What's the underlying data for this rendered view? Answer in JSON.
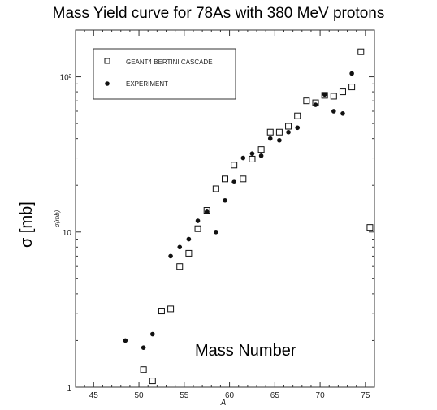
{
  "title": "Mass Yield curve for 78As with 380 MeV protons",
  "ylabel_outer": "σ [mb]",
  "mass_number_label": "Mass Number",
  "chart_data": {
    "type": "scatter",
    "title": "Mass Yield curve for 78As with 380 MeV protons",
    "xlabel": "A",
    "ylabel": "σ(mb)",
    "xlim": [
      43,
      76
    ],
    "ylim": [
      1,
      200
    ],
    "y_scale": "log",
    "x_ticks": [
      45,
      50,
      55,
      60,
      65,
      70,
      75
    ],
    "y_ticks": [
      {
        "value": 1,
        "label": "1"
      },
      {
        "value": 10,
        "label": "10"
      },
      {
        "value": 100,
        "label": "10²"
      }
    ],
    "legend_position": "top-left",
    "series": [
      {
        "name": "GEANT4 BERTINI CASCADE",
        "marker": "open-square",
        "points": [
          {
            "x": 50.5,
            "y": 1.3
          },
          {
            "x": 51.5,
            "y": 1.1
          },
          {
            "x": 52.5,
            "y": 3.1
          },
          {
            "x": 53.5,
            "y": 3.2
          },
          {
            "x": 54.5,
            "y": 6.0
          },
          {
            "x": 55.5,
            "y": 7.3
          },
          {
            "x": 56.5,
            "y": 10.5
          },
          {
            "x": 57.5,
            "y": 13.8
          },
          {
            "x": 58.5,
            "y": 19.0
          },
          {
            "x": 59.5,
            "y": 22.0
          },
          {
            "x": 60.5,
            "y": 27.0
          },
          {
            "x": 61.5,
            "y": 22.0
          },
          {
            "x": 62.5,
            "y": 29.5
          },
          {
            "x": 63.5,
            "y": 34.0
          },
          {
            "x": 64.5,
            "y": 44.0
          },
          {
            "x": 65.5,
            "y": 44.0
          },
          {
            "x": 66.5,
            "y": 48.0
          },
          {
            "x": 67.5,
            "y": 56.0
          },
          {
            "x": 68.5,
            "y": 70.0
          },
          {
            "x": 69.5,
            "y": 68.0
          },
          {
            "x": 70.5,
            "y": 76.0
          },
          {
            "x": 71.5,
            "y": 75.0
          },
          {
            "x": 72.5,
            "y": 80.0
          },
          {
            "x": 73.5,
            "y": 86.0
          },
          {
            "x": 74.5,
            "y": 145.0
          },
          {
            "x": 75.5,
            "y": 10.7
          }
        ]
      },
      {
        "name": "EXPERIMENT",
        "marker": "filled-circle",
        "points": [
          {
            "x": 48.5,
            "y": 2.0
          },
          {
            "x": 50.5,
            "y": 1.8
          },
          {
            "x": 51.5,
            "y": 2.2
          },
          {
            "x": 53.5,
            "y": 7.0
          },
          {
            "x": 54.5,
            "y": 8.0
          },
          {
            "x": 55.5,
            "y": 9.0
          },
          {
            "x": 56.5,
            "y": 11.8
          },
          {
            "x": 57.5,
            "y": 13.5
          },
          {
            "x": 58.5,
            "y": 10.0
          },
          {
            "x": 59.5,
            "y": 16.0
          },
          {
            "x": 60.5,
            "y": 21.0
          },
          {
            "x": 61.5,
            "y": 30.0
          },
          {
            "x": 62.5,
            "y": 32.0
          },
          {
            "x": 63.5,
            "y": 31.0
          },
          {
            "x": 64.5,
            "y": 40.0
          },
          {
            "x": 65.5,
            "y": 39.0
          },
          {
            "x": 66.5,
            "y": 44.0
          },
          {
            "x": 67.5,
            "y": 47.0
          },
          {
            "x": 69.5,
            "y": 66.0
          },
          {
            "x": 70.5,
            "y": 77.0
          },
          {
            "x": 71.5,
            "y": 60.0
          },
          {
            "x": 72.5,
            "y": 58.0
          },
          {
            "x": 73.5,
            "y": 105.0
          }
        ]
      }
    ]
  }
}
